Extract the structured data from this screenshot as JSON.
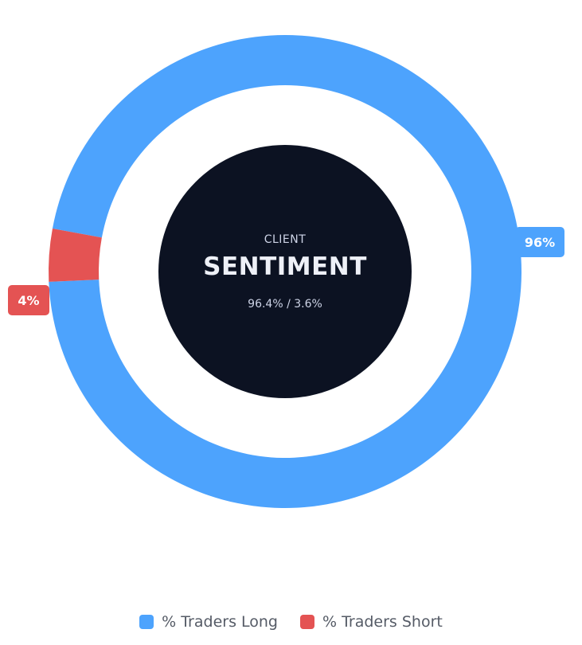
{
  "chart_data": {
    "type": "pie",
    "series": [
      {
        "name": "% Traders Long",
        "value": 96.4,
        "label": "96%",
        "color": "#4da3fd"
      },
      {
        "name": "% Traders Short",
        "value": 3.6,
        "label": "4%",
        "color": "#e45353"
      }
    ]
  },
  "center": {
    "top_text": "CLIENT",
    "main_text": "SENTIMENT",
    "bottom_text": "96.4% / 3.6%",
    "color": "#0c1222"
  },
  "legend": {
    "items": [
      {
        "label": "% Traders Long",
        "color": "#4da3fd"
      },
      {
        "label": "% Traders Short",
        "color": "#e45353"
      }
    ]
  }
}
